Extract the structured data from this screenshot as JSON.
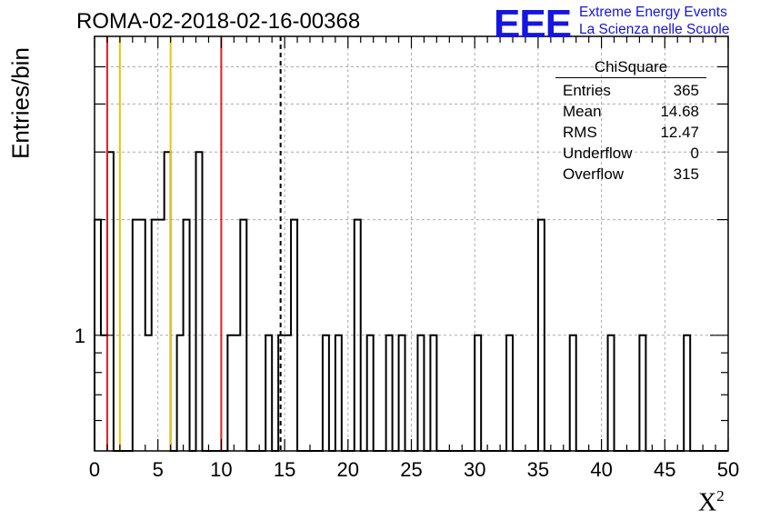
{
  "title": "ROMA-02-2018-02-16-00368",
  "logo": {
    "text": "EEE",
    "line1": "Extreme Energy Events",
    "line2": "La Scienza nelle Scuole",
    "color": "#1515e0"
  },
  "ylabel": "Entries/bin",
  "xlabel": "X",
  "xlabel_sup": "2",
  "stats": {
    "title": "ChiSquare",
    "rows": [
      {
        "label": "Entries",
        "value": "365"
      },
      {
        "label": "Mean",
        "value": "14.68"
      },
      {
        "label": "RMS",
        "value": "12.47"
      },
      {
        "label": "Underflow",
        "value": "0"
      },
      {
        "label": "Overflow",
        "value": "315"
      }
    ]
  },
  "colors": {
    "red": "#dd2020",
    "yellow": "#f0c010",
    "hist": "#000000"
  },
  "chart_data": {
    "type": "histogram",
    "log_y": true,
    "xlim": [
      0,
      50
    ],
    "ylim": [
      0.5,
      6
    ],
    "bin_width": 0.5,
    "x_ticks": [
      0,
      5,
      10,
      15,
      20,
      25,
      30,
      35,
      40,
      45,
      50
    ],
    "y_tick_labels": [
      "1"
    ],
    "grid": true,
    "bins": [
      {
        "x": 0.0,
        "y": 2
      },
      {
        "x": 0.5,
        "y": 1
      },
      {
        "x": 1.0,
        "y": 3
      },
      {
        "x": 3.0,
        "y": 2
      },
      {
        "x": 3.5,
        "y": 2
      },
      {
        "x": 4.0,
        "y": 1
      },
      {
        "x": 4.5,
        "y": 2
      },
      {
        "x": 5.0,
        "y": 2
      },
      {
        "x": 5.5,
        "y": 3
      },
      {
        "x": 6.5,
        "y": 1
      },
      {
        "x": 7.0,
        "y": 2
      },
      {
        "x": 8.0,
        "y": 3
      },
      {
        "x": 10.5,
        "y": 1
      },
      {
        "x": 11.0,
        "y": 1
      },
      {
        "x": 11.5,
        "y": 2
      },
      {
        "x": 13.5,
        "y": 1
      },
      {
        "x": 14.5,
        "y": 1
      },
      {
        "x": 15.0,
        "y": 1
      },
      {
        "x": 15.5,
        "y": 2
      },
      {
        "x": 18.0,
        "y": 1
      },
      {
        "x": 19.0,
        "y": 1
      },
      {
        "x": 20.5,
        "y": 2
      },
      {
        "x": 21.5,
        "y": 1
      },
      {
        "x": 23.0,
        "y": 1
      },
      {
        "x": 24.0,
        "y": 1
      },
      {
        "x": 25.5,
        "y": 1
      },
      {
        "x": 26.5,
        "y": 1
      },
      {
        "x": 30.0,
        "y": 1
      },
      {
        "x": 32.5,
        "y": 1
      },
      {
        "x": 35.0,
        "y": 2
      },
      {
        "x": 37.5,
        "y": 1
      },
      {
        "x": 40.5,
        "y": 1
      },
      {
        "x": 43.0,
        "y": 1
      },
      {
        "x": 46.5,
        "y": 1
      }
    ],
    "vlines": [
      {
        "x": 1.0,
        "color": "#dd2020",
        "style": "solid"
      },
      {
        "x": 2.0,
        "color": "#f0c010",
        "style": "solid"
      },
      {
        "x": 6.0,
        "color": "#f0c010",
        "style": "solid"
      },
      {
        "x": 10.0,
        "color": "#dd2020",
        "style": "solid"
      },
      {
        "x": 14.68,
        "color": "#000000",
        "style": "dashed"
      }
    ]
  }
}
